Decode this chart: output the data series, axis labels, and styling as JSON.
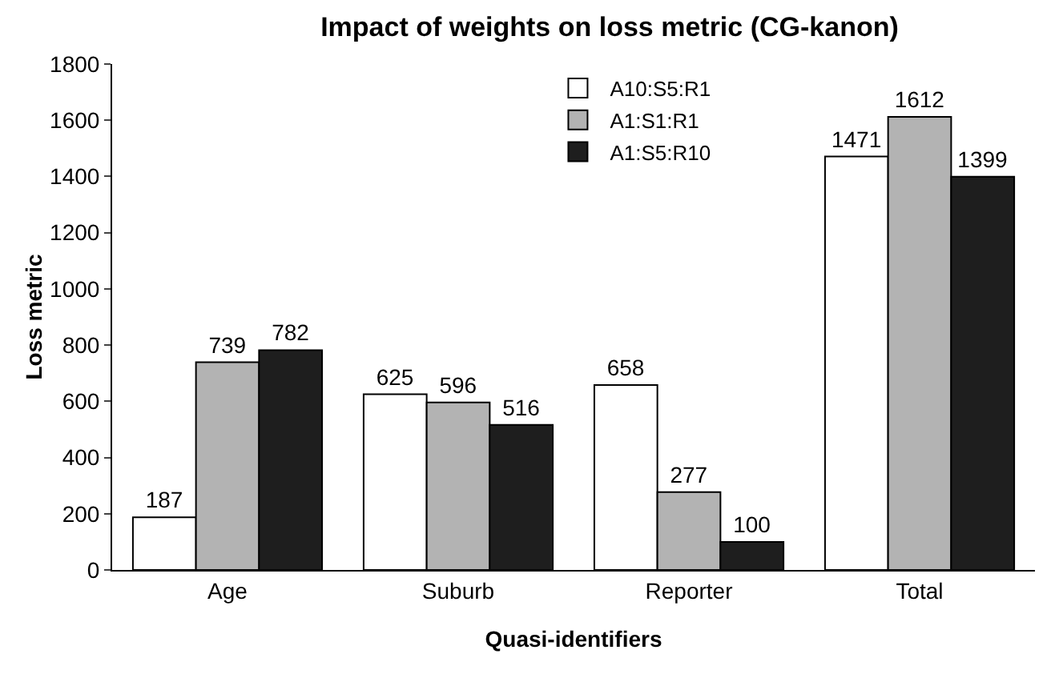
{
  "chart_data": {
    "type": "bar",
    "title": "Impact of weights on loss metric (CG-kanon)",
    "xlabel": "Quasi-identifiers",
    "ylabel": "Loss metric",
    "categories": [
      "Age",
      "Suburb",
      "Reporter",
      "Total"
    ],
    "series": [
      {
        "name": "A10:S5:R1",
        "color": "#ffffff",
        "values": [
          187,
          625,
          658,
          1471
        ]
      },
      {
        "name": "A1:S1:R1",
        "color": "#b3b3b3",
        "values": [
          739,
          596,
          277,
          1612
        ]
      },
      {
        "name": "A1:S5:R10",
        "color": "#1e1e1e",
        "values": [
          782,
          516,
          100,
          1399
        ]
      }
    ],
    "ylim": [
      0,
      1800
    ],
    "yticks": [
      0,
      200,
      400,
      600,
      800,
      1000,
      1200,
      1400,
      1600,
      1800
    ],
    "grid": false,
    "legend": "top right",
    "data_labels": true
  }
}
